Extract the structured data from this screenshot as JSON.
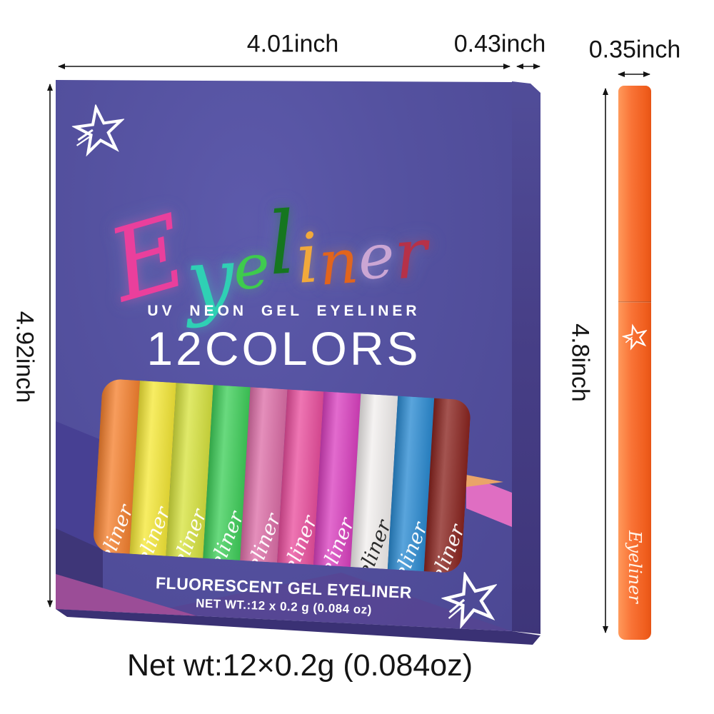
{
  "dimensions": {
    "box_width": "4.01inch",
    "box_depth": "0.43inch",
    "pen_width": "0.35inch",
    "box_height": "4.92inch",
    "pen_height": "4.8inch"
  },
  "box": {
    "brand_letters": [
      {
        "char": "E",
        "color": "#ea3f9c"
      },
      {
        "char": "y",
        "color": "#2fd0b4"
      },
      {
        "char": "e",
        "color": "#3ecb4d"
      },
      {
        "char": "l",
        "color": "#15761f"
      },
      {
        "char": "i",
        "color": "#f2a93b"
      },
      {
        "char": "n",
        "color": "#e2641c"
      },
      {
        "char": "e",
        "color": "#cba6d4"
      },
      {
        "char": "r",
        "color": "#b63148"
      }
    ],
    "subtitle": "UV NEON GEL EYELINER",
    "colors_count": "12COLORS",
    "stripe_logo_text": "Eyeliner",
    "pens": [
      {
        "name": "orange",
        "color": "#f5812f",
        "logo_color": "#ffffff"
      },
      {
        "name": "yellow",
        "color": "#f5e838",
        "logo_color": "#ffffff"
      },
      {
        "name": "chartreuse",
        "color": "#d7e33f",
        "logo_color": "#ffffff"
      },
      {
        "name": "green",
        "color": "#3fcf5a",
        "logo_color": "#ffffff"
      },
      {
        "name": "rose-pink",
        "color": "#dd6fa8",
        "logo_color": "#ffffff"
      },
      {
        "name": "hot-pink",
        "color": "#ea4f9e",
        "logo_color": "#ffffff"
      },
      {
        "name": "magenta",
        "color": "#da41c0",
        "logo_color": "#ffffff"
      },
      {
        "name": "white",
        "color": "#f2efee",
        "logo_color": "#222222"
      },
      {
        "name": "blue",
        "color": "#2b8bd2",
        "logo_color": "#ffffff"
      },
      {
        "name": "maroon",
        "color": "#8a241f",
        "logo_color": "#ffffff"
      }
    ],
    "footer_line1": "FLUORESCENT GEL EYELINER",
    "footer_line2": "NET WT.:12 x 0.2 g (0.084 oz)"
  },
  "pen": {
    "label": "Eyeliner",
    "body_color": "#f4692c"
  },
  "caption": "Net wt:12×0.2g (0.084oz)",
  "colors": {
    "box_front": "#52519d",
    "box_side": "#453d82",
    "box_bottom": "#3a3174",
    "dimension_text": "#141414"
  },
  "icons": {
    "star": "shooting-star-logo"
  }
}
